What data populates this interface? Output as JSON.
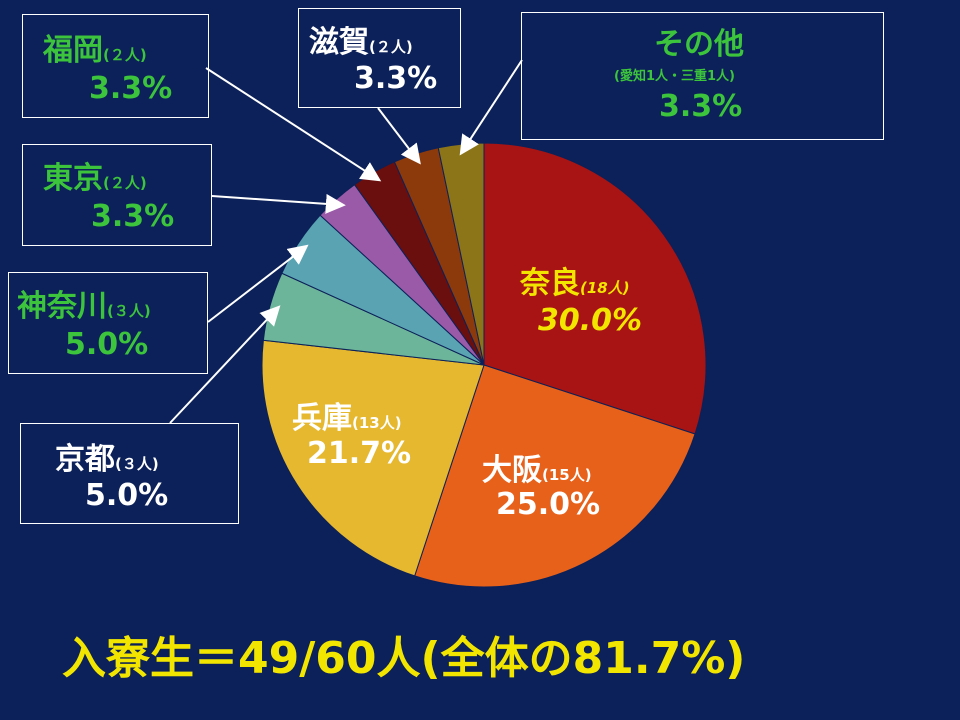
{
  "colors": {
    "background": "#0c2159",
    "label_white": "#ffffff",
    "label_green": "#3cc43c",
    "label_yellow": "#f2e600",
    "leader_line": "#ffffff"
  },
  "chart_data": {
    "type": "pie",
    "total_label": "入寮生＝49/60人(全体の81.7%)",
    "slices": [
      {
        "name": "奈良",
        "count_label": "(18人)",
        "value": 30.0,
        "pct_label": "30.0%",
        "color": "#a81414"
      },
      {
        "name": "大阪",
        "count_label": "(15人)",
        "value": 25.0,
        "pct_label": "25.0%",
        "color": "#e8611a"
      },
      {
        "name": "兵庫",
        "count_label": "(13人)",
        "value": 21.7,
        "pct_label": "21.7%",
        "color": "#e6b830"
      },
      {
        "name": "京都",
        "count_label": "(３人)",
        "value": 5.0,
        "pct_label": "5.0%",
        "color": "#6db59a"
      },
      {
        "name": "神奈川",
        "count_label": "(３人)",
        "value": 5.0,
        "pct_label": "5.0%",
        "color": "#5aa3b3"
      },
      {
        "name": "東京",
        "count_label": "(２人)",
        "value": 3.3,
        "pct_label": "3.3%",
        "color": "#9a5aa8"
      },
      {
        "name": "福岡",
        "count_label": "(２人)",
        "value": 3.3,
        "pct_label": "3.3%",
        "color": "#6a0e0e"
      },
      {
        "name": "滋賀",
        "count_label": "(２人)",
        "value": 3.3,
        "pct_label": "3.3%",
        "color": "#8c3a0c"
      },
      {
        "name": "その他",
        "count_label": "(愛知1人・三重1人)",
        "value": 3.3,
        "pct_label": "3.3%",
        "color": "#8c7418"
      }
    ]
  }
}
